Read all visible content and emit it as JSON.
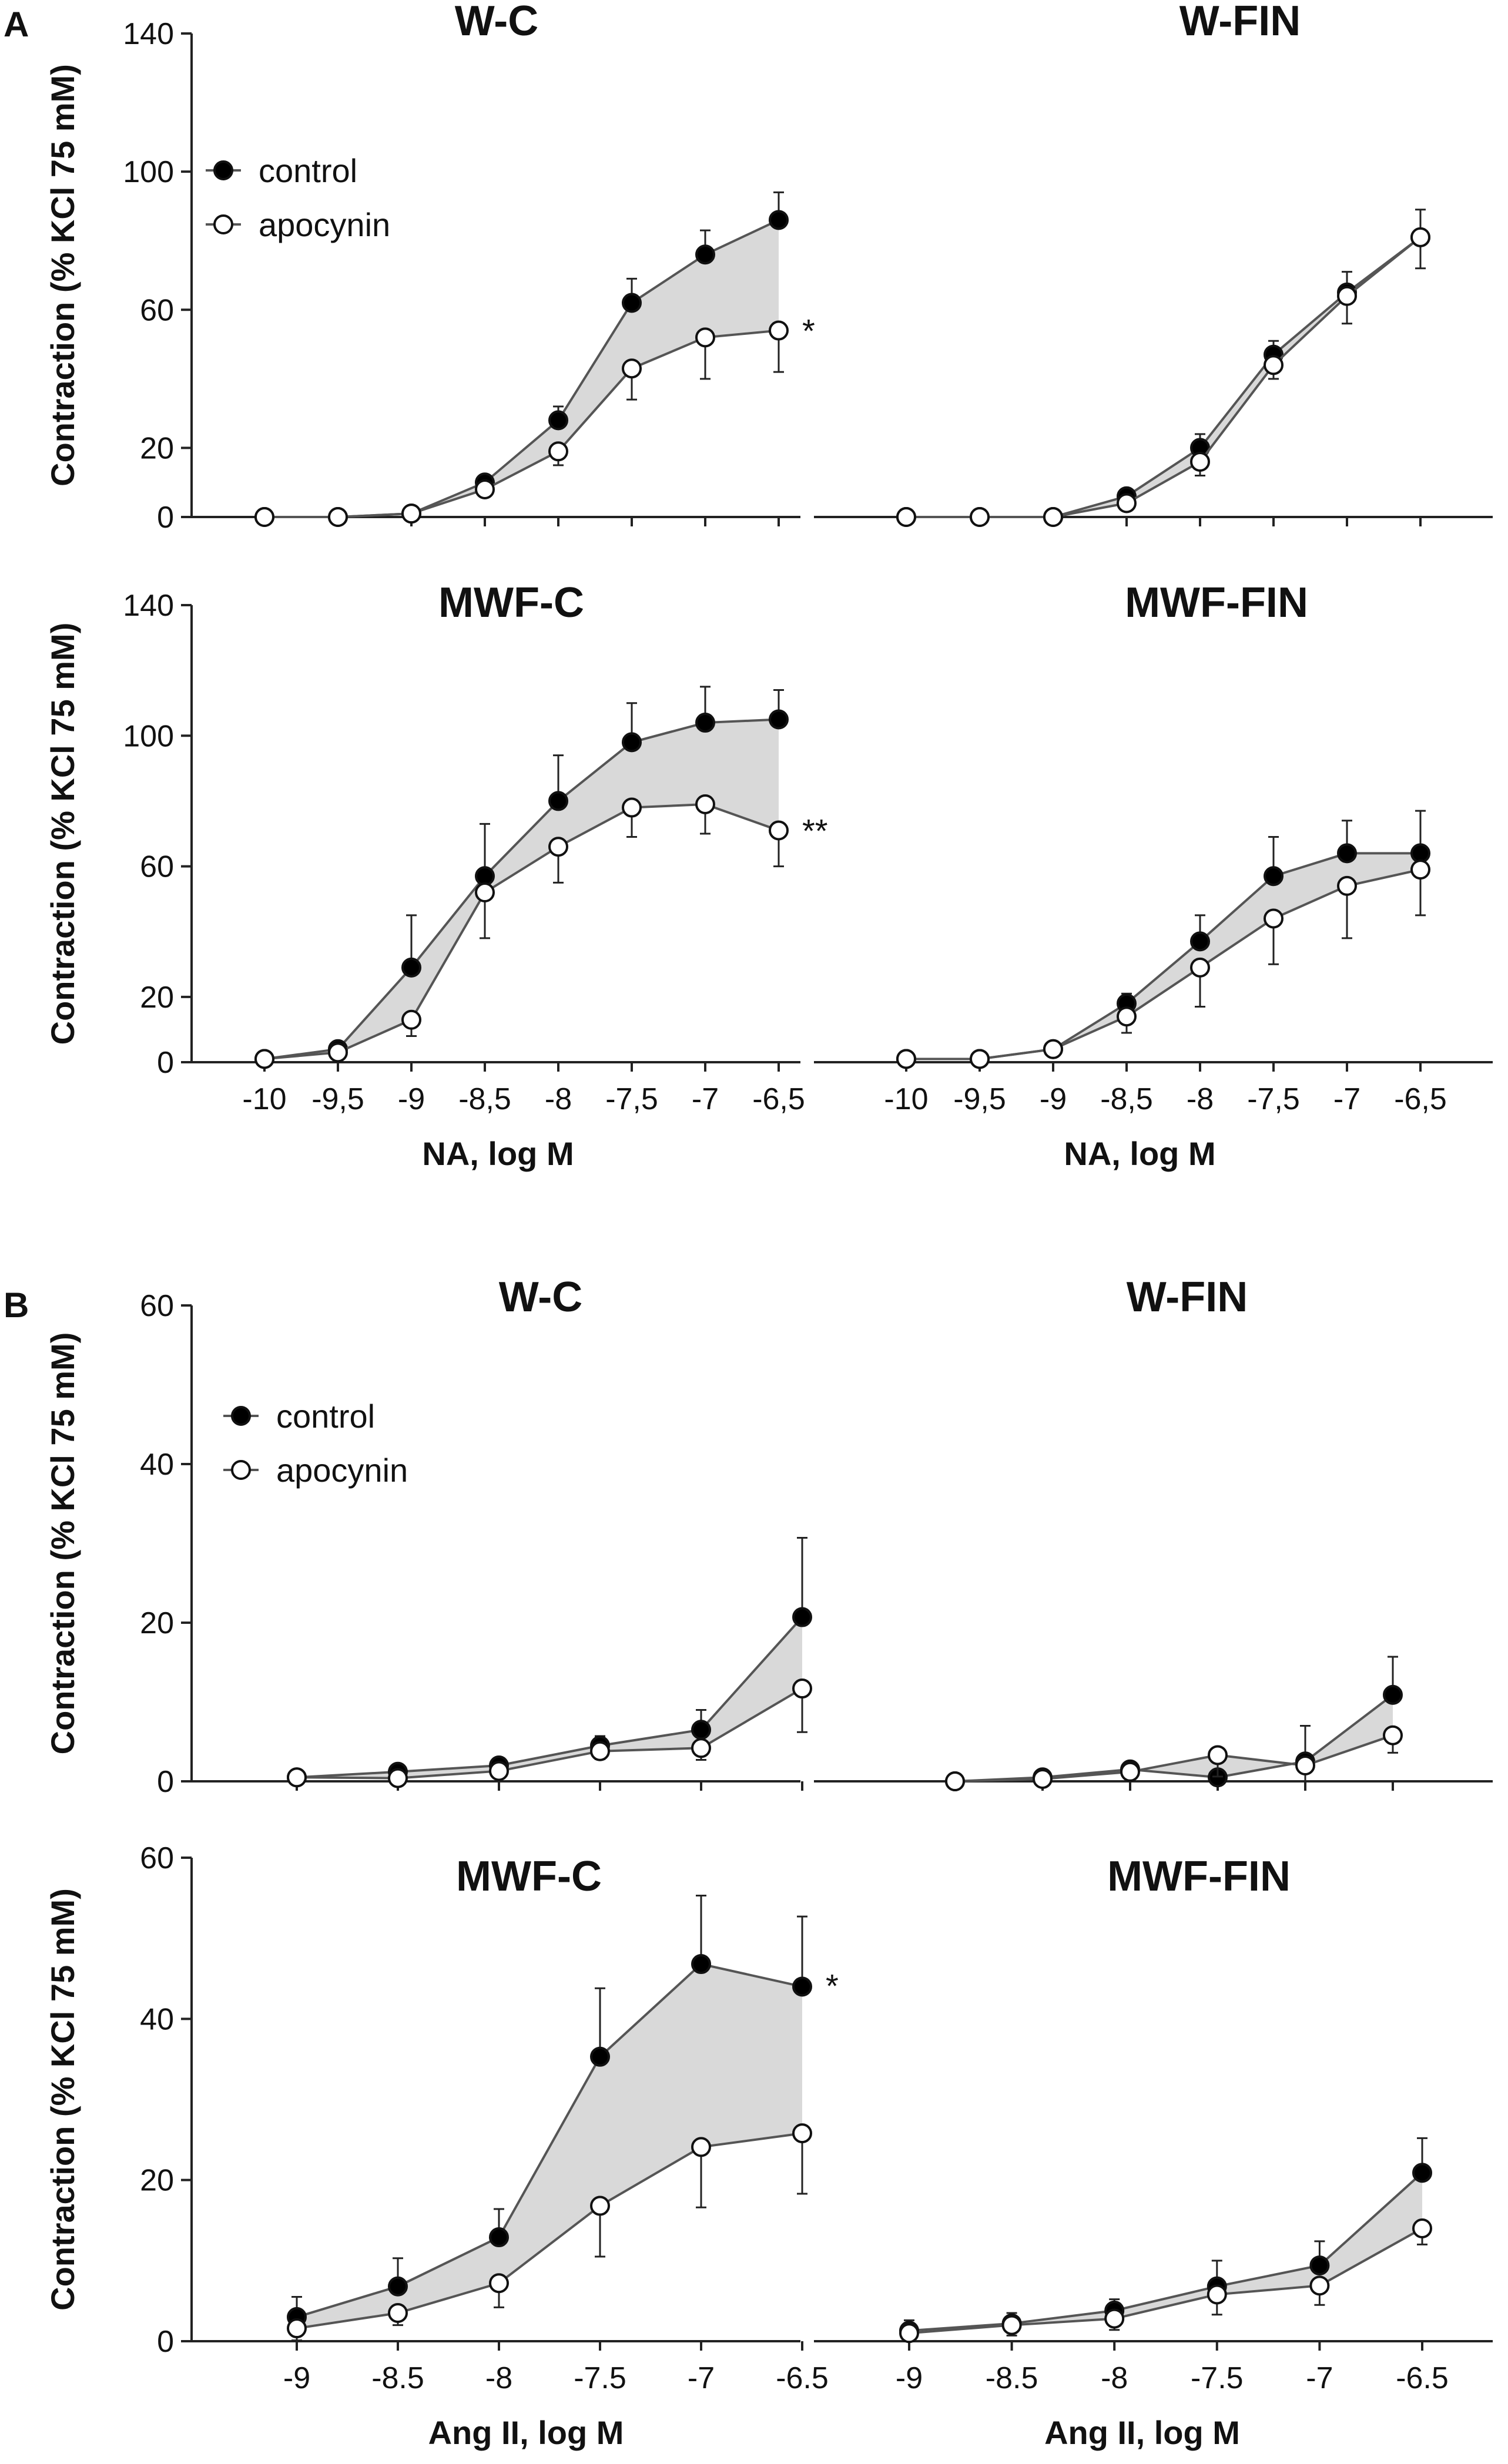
{
  "panel_labels": [
    "A",
    "B"
  ],
  "legend": {
    "control": "control",
    "apocynin": "apocynin"
  },
  "colors": {
    "control": "#000000",
    "apocynin": "#ffffff",
    "line": "#555555",
    "shade": "#d9d9d9"
  },
  "chart_data": [
    {
      "type": "line",
      "panel": "A",
      "title": "W-C",
      "ylabel": "Contraction (% KCl 75 mM)",
      "xlabel": "",
      "ylim": [
        0,
        140
      ],
      "yticks": [
        "0",
        "20",
        "60",
        "100",
        "140"
      ],
      "x": [
        -10,
        -9.5,
        -9,
        -8.5,
        -8,
        -7.5,
        -7,
        -6.5
      ],
      "series": [
        {
          "name": "control",
          "values": [
            0,
            0,
            1,
            10,
            28,
            62,
            76,
            86
          ],
          "errors": [
            1,
            1,
            1,
            2,
            4,
            7,
            7,
            8
          ]
        },
        {
          "name": "apocynin",
          "values": [
            0,
            0,
            1,
            8,
            19,
            43,
            52,
            54
          ],
          "errors": [
            1,
            1,
            1,
            2,
            4,
            9,
            12,
            12
          ]
        }
      ],
      "annotation": "*"
    },
    {
      "type": "line",
      "panel": "A",
      "title": "W-FIN",
      "ylabel": "",
      "xlabel": "",
      "ylim": [
        0,
        140
      ],
      "yticks": [],
      "x": [
        -10,
        -9.5,
        -9,
        -8.5,
        -8,
        -7.5,
        -7,
        -6.5
      ],
      "series": [
        {
          "name": "control",
          "values": [
            0,
            0,
            0,
            6,
            20,
            47,
            65,
            81
          ],
          "errors": [
            1,
            1,
            1,
            2,
            4,
            4,
            6,
            8
          ]
        },
        {
          "name": "apocynin",
          "values": [
            0,
            0,
            0,
            4,
            16,
            44,
            64,
            81
          ],
          "errors": [
            1,
            1,
            1,
            2,
            4,
            4,
            8,
            9
          ]
        }
      ],
      "annotation": ""
    },
    {
      "type": "line",
      "panel": "A",
      "title": "MWF-C",
      "ylabel": "Contraction (% KCl 75 mM)",
      "xlabel": "NA, log M",
      "ylim": [
        0,
        140
      ],
      "yticks": [
        "0",
        "20",
        "60",
        "100",
        "140"
      ],
      "x": [
        -10,
        -9.5,
        -9,
        -8.5,
        -8,
        -7.5,
        -7,
        -6.5
      ],
      "xticklabels": [
        "-10",
        "-9,5",
        "-9",
        "-8,5",
        "-8",
        "-7,5",
        "-7",
        "-6,5"
      ],
      "series": [
        {
          "name": "control",
          "values": [
            1,
            4,
            29,
            57,
            80,
            98,
            104,
            105
          ],
          "errors": [
            2,
            2,
            16,
            16,
            14,
            12,
            11,
            9
          ]
        },
        {
          "name": "apocynin",
          "values": [
            1,
            3,
            13,
            52,
            66,
            78,
            79,
            71
          ],
          "errors": [
            2,
            2,
            5,
            14,
            11,
            9,
            9,
            11
          ]
        }
      ],
      "annotation": "**"
    },
    {
      "type": "line",
      "panel": "A",
      "title": "MWF-FIN",
      "ylabel": "",
      "xlabel": "NA, log M",
      "ylim": [
        0,
        140
      ],
      "yticks": [],
      "x": [
        -10,
        -9.5,
        -9,
        -8.5,
        -8,
        -7.5,
        -7,
        -6.5
      ],
      "xticklabels": [
        "-10",
        "-9,5",
        "-9",
        "-8,5",
        "-8",
        "-7,5",
        "-7",
        "-6,5"
      ],
      "series": [
        {
          "name": "control",
          "values": [
            1,
            1,
            4,
            18,
            37,
            57,
            64,
            64
          ],
          "errors": [
            2,
            2,
            2,
            3,
            8,
            12,
            10,
            13
          ]
        },
        {
          "name": "apocynin",
          "values": [
            1,
            1,
            4,
            14,
            29,
            44,
            54,
            59
          ],
          "errors": [
            2,
            2,
            2,
            5,
            12,
            14,
            16,
            14
          ]
        }
      ],
      "annotation": ""
    },
    {
      "type": "line",
      "panel": "B",
      "title": "W-C",
      "ylabel": "Contraction (% KCl 75 mM)",
      "xlabel": "",
      "ylim": [
        0,
        60
      ],
      "yticks": [
        "0",
        "20",
        "40",
        "60"
      ],
      "x": [
        -9,
        -8.5,
        -8,
        -7.5,
        -7,
        -6.5
      ],
      "series": [
        {
          "name": "control",
          "values": [
            0.5,
            1.2,
            2.0,
            4.5,
            6.5,
            20.7
          ],
          "errors": [
            0.5,
            0.5,
            0.6,
            1.2,
            2.5,
            10
          ]
        },
        {
          "name": "apocynin",
          "values": [
            0.5,
            0.4,
            1.3,
            3.8,
            4.2,
            11.7
          ],
          "errors": [
            0.5,
            0.5,
            0.6,
            1.0,
            1.5,
            5.5
          ]
        }
      ],
      "annotation": ""
    },
    {
      "type": "line",
      "panel": "B",
      "title": "W-FIN",
      "ylabel": "",
      "xlabel": "",
      "ylim": [
        0,
        60
      ],
      "yticks": [],
      "x": [
        -9,
        -8.5,
        -8,
        -7.5,
        -7,
        -6.5
      ],
      "series": [
        {
          "name": "control",
          "values": [
            0,
            0.5,
            1.5,
            0.5,
            2.5,
            10.9
          ],
          "errors": [
            0.3,
            0.6,
            0.8,
            0.6,
            4.5,
            4.8
          ]
        },
        {
          "name": "apocynin",
          "values": [
            0,
            0.3,
            1.2,
            3.3,
            2.0,
            5.8
          ],
          "errors": [
            0.3,
            0.6,
            0.8,
            2.7,
            2.0,
            2.2
          ]
        }
      ],
      "annotation": ""
    },
    {
      "type": "line",
      "panel": "B",
      "title": "MWF-C",
      "ylabel": "Contraction (% KCl 75 mM)",
      "xlabel": "Ang II, log M",
      "ylim": [
        0,
        60
      ],
      "yticks": [
        "0",
        "20",
        "40",
        "60"
      ],
      "x": [
        -9,
        -8.5,
        -8,
        -7.5,
        -7,
        -6.5
      ],
      "xticklabels": [
        "-9",
        "-8.5",
        "-8",
        "-7.5",
        "-7",
        "-6.5"
      ],
      "series": [
        {
          "name": "control",
          "values": [
            3.0,
            6.8,
            12.9,
            35.3,
            46.8,
            44.0
          ],
          "errors": [
            2.5,
            3.5,
            3.5,
            8.5,
            8.5,
            8.7
          ]
        },
        {
          "name": "apocynin",
          "values": [
            1.6,
            3.5,
            7.2,
            16.8,
            24.1,
            25.8
          ],
          "errors": [
            1.5,
            1.5,
            3.0,
            6.3,
            7.5,
            7.5
          ]
        }
      ],
      "annotation": "*"
    },
    {
      "type": "line",
      "panel": "B",
      "title": "MWF-FIN",
      "ylabel": "",
      "xlabel": "Ang II, log M",
      "ylim": [
        0,
        60
      ],
      "yticks": [],
      "x": [
        -9,
        -8.5,
        -8,
        -7.5,
        -7,
        -6.5
      ],
      "xticklabels": [
        "-9",
        "-8.5",
        "-8",
        "-7.5",
        "-7",
        "-6.5"
      ],
      "series": [
        {
          "name": "control",
          "values": [
            1.3,
            2.2,
            3.8,
            6.8,
            9.4,
            20.9
          ],
          "errors": [
            1.3,
            1.3,
            1.4,
            3.2,
            3.0,
            4.3
          ]
        },
        {
          "name": "apocynin",
          "values": [
            1.0,
            2.0,
            2.8,
            5.8,
            6.9,
            14.0
          ],
          "errors": [
            1.3,
            1.3,
            1.4,
            2.5,
            2.4,
            2.0
          ]
        }
      ],
      "annotation": ""
    }
  ]
}
